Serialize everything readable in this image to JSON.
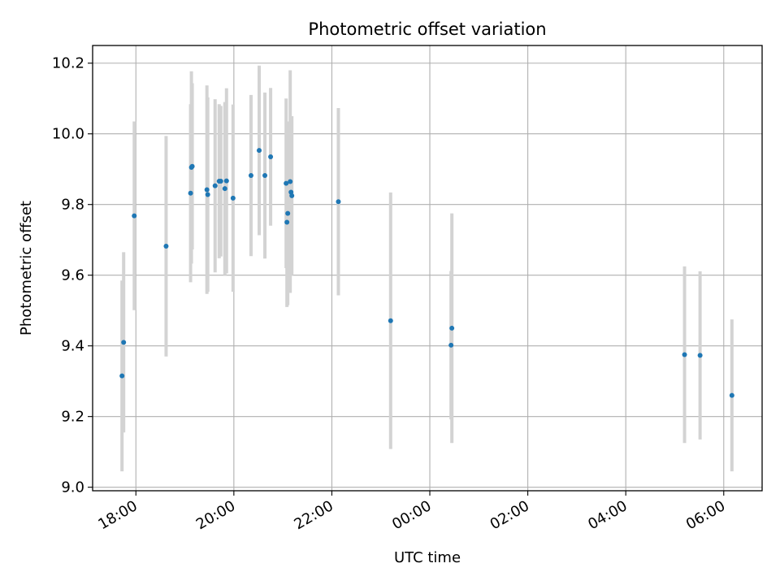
{
  "chart_data": {
    "type": "scatter",
    "title": "Photometric offset variation",
    "xlabel": "UTC time",
    "ylabel": "Photometric offset",
    "x_axis_type": "time",
    "xlim": [
      "17:07",
      "06:47"
    ],
    "ylim": [
      8.99,
      10.25
    ],
    "x_ticks": [
      "18:00",
      "20:00",
      "22:00",
      "00:00",
      "02:00",
      "04:00",
      "06:00"
    ],
    "y_ticks": [
      "9.0",
      "9.2",
      "9.4",
      "9.6",
      "9.8",
      "10.0",
      "10.2"
    ],
    "grid": true,
    "legend": "none",
    "colors": {
      "point": "#1f77b4",
      "errorbar": "#d3d3d3",
      "grid": "#b0b0b0"
    },
    "points": [
      {
        "x": "17:43",
        "y": 9.315,
        "err": 0.27
      },
      {
        "x": "17:45",
        "y": 9.41,
        "err": 0.255
      },
      {
        "x": "17:58",
        "y": 9.768,
        "err": 0.267
      },
      {
        "x": "18:37",
        "y": 9.682,
        "err": 0.312
      },
      {
        "x": "19:07",
        "y": 9.832,
        "err": 0.252
      },
      {
        "x": "19:08",
        "y": 9.905,
        "err": 0.272
      },
      {
        "x": "19:09",
        "y": 9.908,
        "err": 0.235
      },
      {
        "x": "19:27",
        "y": 9.842,
        "err": 0.295
      },
      {
        "x": "19:28",
        "y": 9.828,
        "err": 0.275
      },
      {
        "x": "19:37",
        "y": 9.853,
        "err": 0.245
      },
      {
        "x": "19:42",
        "y": 9.866,
        "err": 0.218
      },
      {
        "x": "19:44",
        "y": 9.866,
        "err": 0.213
      },
      {
        "x": "19:49",
        "y": 9.845,
        "err": 0.245
      },
      {
        "x": "19:51",
        "y": 9.867,
        "err": 0.262
      },
      {
        "x": "19:59",
        "y": 9.818,
        "err": 0.265
      },
      {
        "x": "20:21",
        "y": 9.882,
        "err": 0.228
      },
      {
        "x": "20:31",
        "y": 9.953,
        "err": 0.24
      },
      {
        "x": "20:38",
        "y": 9.882,
        "err": 0.235
      },
      {
        "x": "20:45",
        "y": 9.935,
        "err": 0.195
      },
      {
        "x": "21:04",
        "y": 9.86,
        "err": 0.24
      },
      {
        "x": "21:05",
        "y": 9.75,
        "err": 0.24
      },
      {
        "x": "21:06",
        "y": 9.775,
        "err": 0.26
      },
      {
        "x": "21:09",
        "y": 9.865,
        "err": 0.315
      },
      {
        "x": "21:10",
        "y": 9.835,
        "err": 0.215
      },
      {
        "x": "21:11",
        "y": 9.825,
        "err": 0.225
      },
      {
        "x": "22:08",
        "y": 9.808,
        "err": 0.265
      },
      {
        "x": "23:12",
        "y": 9.471,
        "err": 0.363
      },
      {
        "x": "00:26",
        "y": 9.402,
        "err": 0.21
      },
      {
        "x": "00:27",
        "y": 9.45,
        "err": 0.325
      },
      {
        "x": "05:12",
        "y": 9.375,
        "err": 0.25
      },
      {
        "x": "05:31",
        "y": 9.373,
        "err": 0.238
      },
      {
        "x": "06:10",
        "y": 9.26,
        "err": 0.215
      }
    ]
  }
}
